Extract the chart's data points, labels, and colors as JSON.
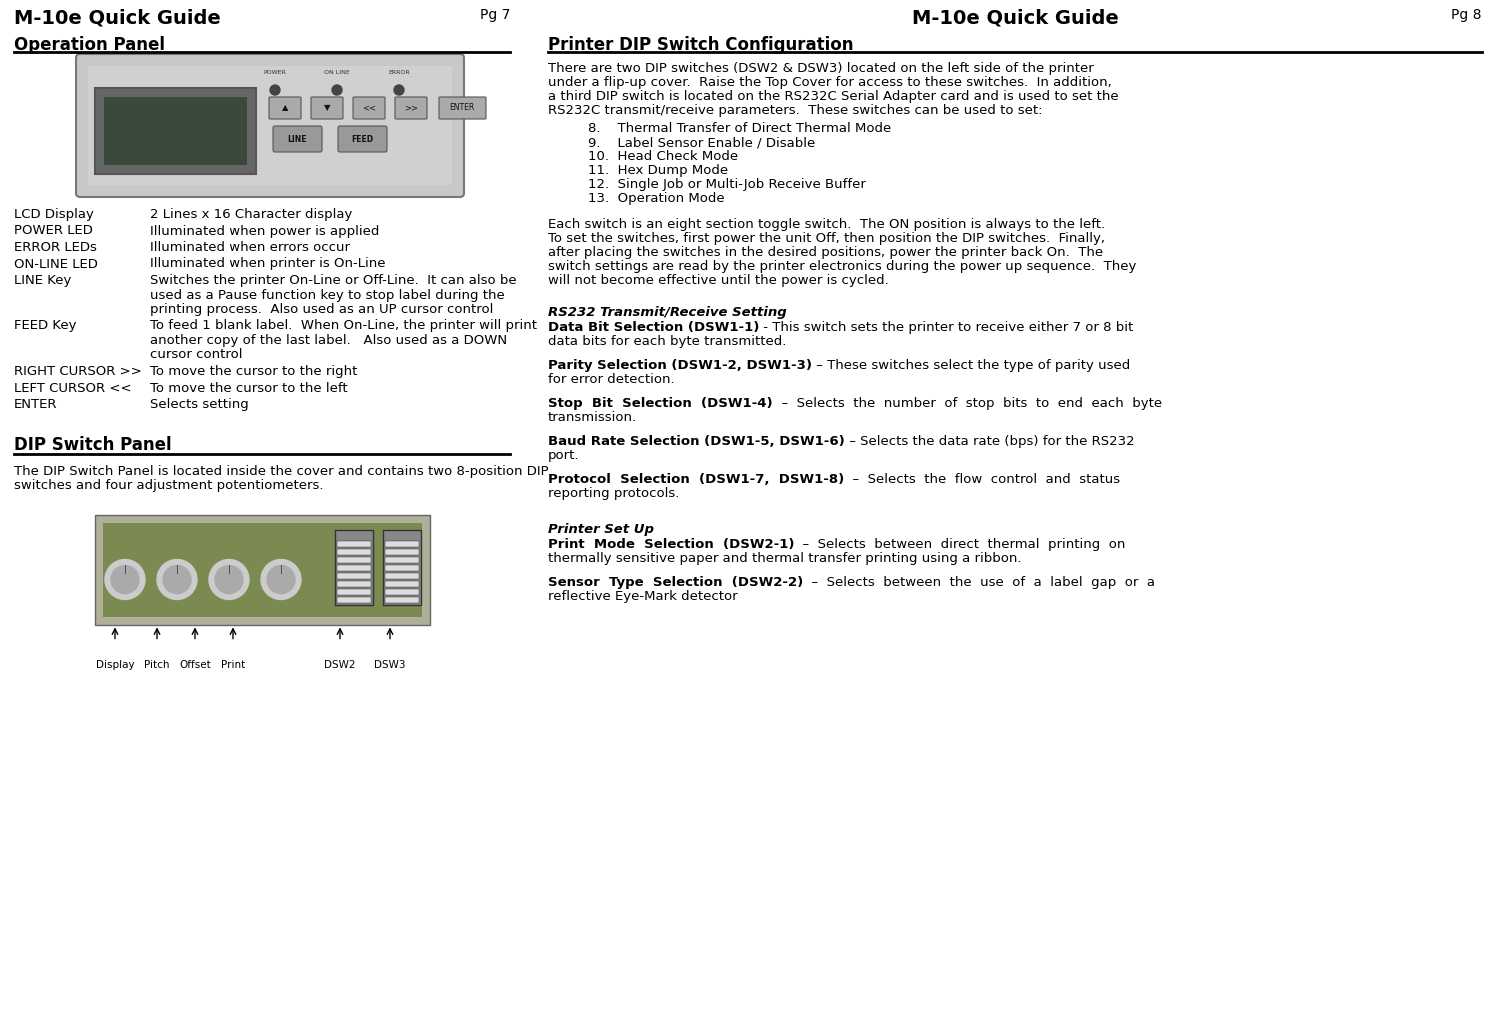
{
  "page_bg": "#ffffff",
  "left_header_title": "M-10e Quick Guide",
  "left_page_num": "Pg 7",
  "right_header_title": "M-10e Quick Guide",
  "right_page_num": "Pg 8",
  "left_section1_title": "Operation Panel",
  "left_table": [
    [
      "LCD Display",
      "2 Lines x 16 Character display"
    ],
    [
      "POWER LED",
      "Illuminated when power is applied"
    ],
    [
      "ERROR LEDs",
      "Illuminated when errors occur"
    ],
    [
      "ON-LINE LED",
      "Illuminated when printer is On-Line"
    ],
    [
      "LINE Key",
      "Switches the printer On-Line or Off-Line.  It can also be\nused as a Pause function key to stop label during the\nprinting process.  Also used as an UP cursor control"
    ],
    [
      "FEED Key",
      "To feed 1 blank label.  When On-Line, the printer will print\nanother copy of the last label.   Also used as a DOWN\ncursor control"
    ],
    [
      "RIGHT CURSOR >>",
      "To move the cursor to the right"
    ],
    [
      "LEFT CURSOR <<",
      "To move the cursor to the left"
    ],
    [
      "ENTER",
      "Selects setting"
    ]
  ],
  "left_section2_title": "DIP Switch Panel",
  "left_section2_text": "The DIP Switch Panel is located inside the cover and contains two 8-position DIP\nswitches and four adjustment potentiometers.",
  "right_section1_title": "Printer DIP Switch Configuration",
  "right_intro": "There are two DIP switches (DSW2 & DSW3) located on the left side of the printer\nunder a flip-up cover.  Raise the Top Cover for access to these switches.  In addition,\na third DIP switch is located on the RS232C Serial Adapter card and is used to set the\nRS232C transmit/receive parameters.  These switches can be used to set:",
  "right_list": [
    "8.    Thermal Transfer of Direct Thermal Mode",
    "9.    Label Sensor Enable / Disable",
    "10.  Head Check Mode",
    "11.  Hex Dump Mode",
    "12.  Single Job or Multi-Job Receive Buffer",
    "13.  Operation Mode"
  ],
  "right_para1_lines": [
    "Each switch is an eight section toggle switch.  The ON position is always to the left.",
    "To set the switches, first power the unit Off, then position the DIP switches.  Finally,",
    "after placing the switches in the desired positions, power the printer back On.  The",
    "switch settings are read by the printer electronics during the power up sequence.  They",
    "will not become effective until the power is cycled."
  ],
  "right_section2_title": "RS232 Transmit/Receive Setting",
  "right_data_bit_bold": "Data Bit Selection (DSW1-1)",
  "right_data_bit_rest": " - This switch sets the printer to receive either 7 or 8 bit\ndata bits for each byte transmitted.",
  "right_parity_bold": "Parity Selection (DSW1-2, DSW1-3)",
  "right_parity_rest": " – These switches select the type of parity used\nfor error detection.",
  "right_stop_bold": "Stop  Bit  Selection  (DSW1-4)",
  "right_stop_rest": "  –  Selects  the  number  of  stop  bits  to  end  each  byte\ntransmission.",
  "right_baud_bold": "Baud Rate Selection (DSW1-5, DSW1-6)",
  "right_baud_rest": " – Selects the data rate (bps) for the RS232\nport.",
  "right_protocol_bold": "Protocol  Selection  (DSW1-7,  DSW1-8)",
  "right_protocol_rest": "  –  Selects  the  flow  control  and  status\nreporting protocols.",
  "right_section3_title": "Printer Set Up",
  "right_print_mode_bold": "Print  Mode  Selection  (DSW2-1)",
  "right_print_mode_rest": "  –  Selects  between  direct  thermal  printing  on\nthermally sensitive paper and thermal transfer printing using a ribbon.",
  "right_sensor_bold": "Sensor  Type  Selection  (DSW2-2)",
  "right_sensor_rest": "  –  Selects  between  the  use  of  a  label  gap  or  a\nreflective Eye-Mark detector"
}
